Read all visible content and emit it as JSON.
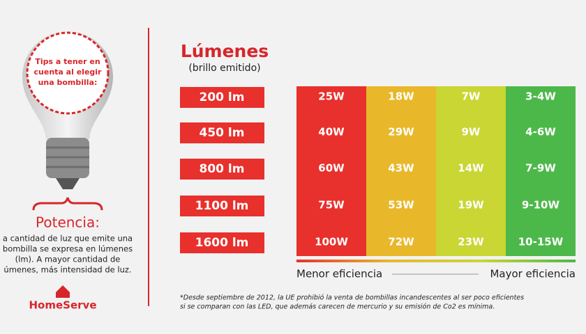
{
  "bulb": {
    "tip_lines": [
      "Tips a tener en",
      "cuenta al elegir",
      "una bombilla:"
    ]
  },
  "side": {
    "heading": "Potencia:",
    "text_lines": [
      "a cantidad de luz que emite una",
      "bombilla se expresa en lúmenes",
      "(lm). A mayor cantidad de",
      "úmenes, más intensidad de luz."
    ]
  },
  "brand": "HomeServe",
  "lumens_title": "Lúmenes",
  "lumens_subtitle": "(brillo emitido)",
  "table": {
    "rows": [
      {
        "lumens": "200 lm",
        "watts": [
          "25W",
          "18W",
          "7W",
          "3-4W"
        ]
      },
      {
        "lumens": "450 lm",
        "watts": [
          "40W",
          "29W",
          "9W",
          "4-6W"
        ]
      },
      {
        "lumens": "800 lm",
        "watts": [
          "60W",
          "43W",
          "14W",
          "7-9W"
        ]
      },
      {
        "lumens": "1100 lm",
        "watts": [
          "75W",
          "53W",
          "19W",
          "9-10W"
        ]
      },
      {
        "lumens": "1600 lm",
        "watts": [
          "100W",
          "72W",
          "23W",
          "10-15W"
        ]
      }
    ]
  },
  "scale": {
    "left": "Menor eficiencia",
    "right": "Mayor eficiencia"
  },
  "footnote_lines": [
    "*Desde septiembre de 2012, la UE prohibió la venta de bombillas incandescentes al ser poco eficientes",
    "si se comparan con las LED, que además carecen de mercurio y su emisión de Co2 es mínima."
  ]
}
